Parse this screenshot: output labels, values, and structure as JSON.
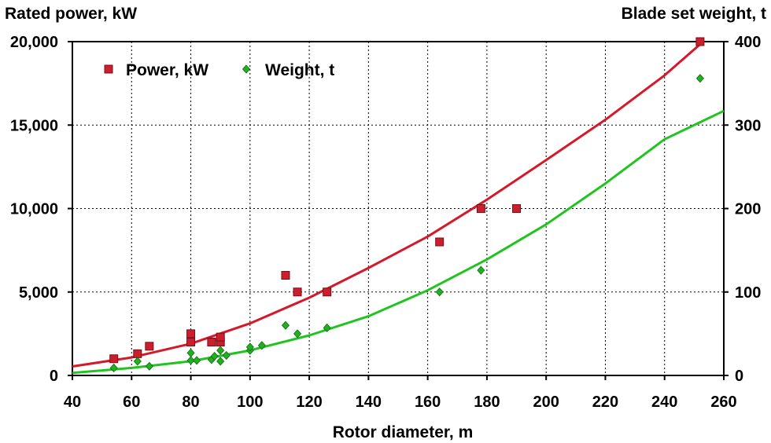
{
  "chart_data": {
    "type": "scatter",
    "title": "",
    "xlabel": "Rotor diameter, m",
    "ylabel": "Rated power, kW",
    "y2label": "Blade set weight, t",
    "xlim": [
      40,
      260
    ],
    "ylim": [
      0,
      20000
    ],
    "y2lim": [
      0,
      400
    ],
    "x_ticks": [
      "40",
      "60",
      "80",
      "100",
      "120",
      "140",
      "160",
      "180",
      "200",
      "220",
      "240",
      "260"
    ],
    "y_ticks": [
      "0",
      "5,000",
      "10,000",
      "15,000",
      "20,000"
    ],
    "y2_ticks": [
      "0",
      "100",
      "200",
      "300",
      "400"
    ],
    "grid": true,
    "legend_position": "top-left",
    "series": [
      {
        "name": "Power, kW",
        "axis": "left",
        "marker": "square",
        "color": "#cc1f2e",
        "points": [
          [
            54,
            1000
          ],
          [
            62,
            1300
          ],
          [
            66,
            1750
          ],
          [
            80,
            2000
          ],
          [
            80,
            2500
          ],
          [
            87,
            2000
          ],
          [
            90,
            2000
          ],
          [
            90,
            2300
          ],
          [
            112,
            6000
          ],
          [
            116,
            5000
          ],
          [
            126,
            5000
          ],
          [
            164,
            8000
          ],
          [
            178,
            10000
          ],
          [
            190,
            10000
          ],
          [
            252,
            20000
          ]
        ]
      },
      {
        "name": "Weight, t",
        "axis": "right",
        "marker": "diamond",
        "color": "#22b022",
        "points": [
          [
            54,
            9
          ],
          [
            62,
            17
          ],
          [
            66,
            11
          ],
          [
            80,
            18
          ],
          [
            80,
            27
          ],
          [
            82,
            18
          ],
          [
            87,
            19
          ],
          [
            88,
            23
          ],
          [
            90,
            17
          ],
          [
            90,
            30
          ],
          [
            92,
            24
          ],
          [
            100,
            30
          ],
          [
            100,
            34
          ],
          [
            104,
            36
          ],
          [
            112,
            60
          ],
          [
            116,
            50
          ],
          [
            126,
            57
          ],
          [
            164,
            100
          ],
          [
            178,
            126
          ],
          [
            252,
            356
          ]
        ]
      }
    ],
    "fit_lines": [
      {
        "series": "Power, kW",
        "axis": "left",
        "color": "#d41a2a",
        "points": [
          [
            40,
            540
          ],
          [
            60,
            1080
          ],
          [
            80,
            1900
          ],
          [
            100,
            3120
          ],
          [
            120,
            4660
          ],
          [
            140,
            6440
          ],
          [
            160,
            8320
          ],
          [
            180,
            10530
          ],
          [
            200,
            12910
          ],
          [
            220,
            15320
          ],
          [
            240,
            17980
          ],
          [
            253,
            20000
          ]
        ]
      },
      {
        "series": "Weight, t",
        "axis": "right",
        "color": "#1fc41f",
        "points": [
          [
            40,
            3
          ],
          [
            60,
            9
          ],
          [
            80,
            17
          ],
          [
            100,
            30
          ],
          [
            120,
            48
          ],
          [
            140,
            71
          ],
          [
            160,
            102
          ],
          [
            180,
            139
          ],
          [
            200,
            181
          ],
          [
            220,
            230
          ],
          [
            240,
            283
          ],
          [
            260,
            317
          ]
        ]
      }
    ]
  }
}
